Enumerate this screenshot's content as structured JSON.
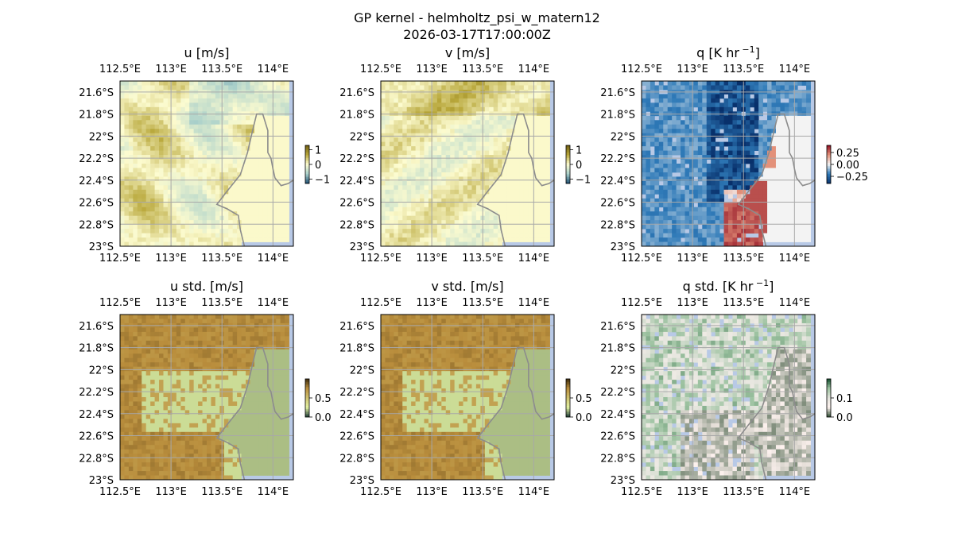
{
  "figure": {
    "title_line1": "GP kernel - helmholtz_psi_w_matern12",
    "title_line2": "2026-03-17T17:00:00Z"
  },
  "colors": {
    "ocean": "#b8c9e6",
    "grid": "#a8a8a8",
    "coast": "#8c8c8c",
    "axes": "#000000"
  },
  "chart_data": [
    {
      "type": "heatmap",
      "id": "u",
      "title": "u [m/s]",
      "lon_ticks": [
        "112.5°E",
        "113°E",
        "113.5°E",
        "114°E"
      ],
      "lat_ticks": [
        "21.6°S",
        "21.8°S",
        "22°S",
        "22.2°S",
        "22.4°S",
        "22.6°S",
        "22.8°S",
        "23°S"
      ],
      "lon_range": [
        112.5,
        114.2
      ],
      "lat_range": [
        -23.0,
        -21.5
      ],
      "colormap": [
        "#1b4a6e",
        "#a8cfca",
        "#fdfcd0",
        "#b8a73a",
        "#6e5c12"
      ],
      "colorbar": {
        "range": [
          -1.3,
          1.3
        ],
        "ticks": [
          1,
          0,
          -1
        ],
        "tick_labels": [
          "1",
          "0",
          "−1"
        ]
      }
    },
    {
      "type": "heatmap",
      "id": "v",
      "title": "v [m/s]",
      "lon_ticks": [
        "112.5°E",
        "113°E",
        "113.5°E",
        "114°E"
      ],
      "lat_ticks": [
        "21.6°S",
        "21.8°S",
        "22°S",
        "22.2°S",
        "22.4°S",
        "22.6°S",
        "22.8°S",
        "23°S"
      ],
      "lon_range": [
        112.5,
        114.2
      ],
      "lat_range": [
        -23.0,
        -21.5
      ],
      "colormap": [
        "#1b4a6e",
        "#a8cfca",
        "#fdfcd0",
        "#b8a73a",
        "#6e5c12"
      ],
      "colorbar": {
        "range": [
          -1.3,
          1.3
        ],
        "ticks": [
          1,
          0,
          -1
        ],
        "tick_labels": [
          "1",
          "0",
          "−1"
        ]
      }
    },
    {
      "type": "heatmap",
      "id": "q",
      "title": "q [K hr",
      "title_sup": "−1",
      "title_end": "]",
      "lon_ticks": [
        "112.5°E",
        "113°E",
        "113.5°E",
        "114°E"
      ],
      "lat_ticks": [
        "21.6°S",
        "21.8°S",
        "22°S",
        "22.2°S",
        "22.4°S",
        "22.6°S",
        "22.8°S",
        "23°S"
      ],
      "lon_range": [
        112.5,
        114.2
      ],
      "lat_range": [
        -23.0,
        -21.5
      ],
      "colormap": [
        "#08306b",
        "#2f7ab8",
        "#f3f3f3",
        "#e3917a",
        "#8e0c20"
      ],
      "colorbar": {
        "range": [
          -0.4,
          0.4
        ],
        "ticks": [
          0.25,
          0.0,
          -0.25
        ],
        "tick_labels": [
          "0.25",
          "0.00",
          "−0.25"
        ]
      }
    },
    {
      "type": "heatmap",
      "id": "u_std",
      "title": "u std. [m/s]",
      "lon_ticks": [
        "112.5°E",
        "113°E",
        "113.5°E",
        "114°E"
      ],
      "lat_ticks": [
        "21.6°S",
        "21.8°S",
        "22°S",
        "22.2°S",
        "22.4°S",
        "22.6°S",
        "22.8°S",
        "23°S"
      ],
      "lon_range": [
        112.5,
        114.2
      ],
      "lat_range": [
        -23.0,
        -21.5
      ],
      "colormap": [
        "#1b3a33",
        "#e3f2a3",
        "#cfc270",
        "#b98d3c",
        "#3a2a0c"
      ],
      "colorbar": {
        "range": [
          0,
          1.0
        ],
        "ticks": [
          0.5,
          0.0
        ],
        "tick_labels": [
          "0.5",
          "0.0"
        ]
      }
    },
    {
      "type": "heatmap",
      "id": "v_std",
      "title": "v std. [m/s]",
      "lon_ticks": [
        "112.5°E",
        "113°E",
        "113.5°E",
        "114°E"
      ],
      "lat_ticks": [
        "21.6°S",
        "21.8°S",
        "22°S",
        "22.2°S",
        "22.4°S",
        "22.6°S",
        "22.8°S",
        "23°S"
      ],
      "lon_range": [
        112.5,
        114.2
      ],
      "lat_range": [
        -23.0,
        -21.5
      ],
      "colormap": [
        "#1b3a33",
        "#e3f2a3",
        "#cfc270",
        "#b98d3c",
        "#3a2a0c"
      ],
      "colorbar": {
        "range": [
          0,
          1.0
        ],
        "ticks": [
          0.5,
          0.0
        ],
        "tick_labels": [
          "0.5",
          "0.0"
        ]
      }
    },
    {
      "type": "heatmap",
      "id": "q_std",
      "title": "q std. [K hr",
      "title_sup": "−1",
      "title_end": "]",
      "lon_ticks": [
        "112.5°E",
        "113°E",
        "113.5°E",
        "114°E"
      ],
      "lat_ticks": [
        "21.6°S",
        "21.8°S",
        "22°S",
        "22.2°S",
        "22.4°S",
        "22.6°S",
        "22.8°S",
        "23°S"
      ],
      "lon_range": [
        112.5,
        114.2
      ],
      "lat_range": [
        -23.0,
        -21.5
      ],
      "colormap": [
        "#2a4a2e",
        "#fff3f0",
        "#e3e4dc",
        "#9cc2a0",
        "#0f4a2a"
      ],
      "colorbar": {
        "range": [
          0,
          0.2
        ],
        "ticks": [
          0.1,
          0.0
        ],
        "tick_labels": [
          "0.1",
          "0.0"
        ]
      }
    }
  ]
}
